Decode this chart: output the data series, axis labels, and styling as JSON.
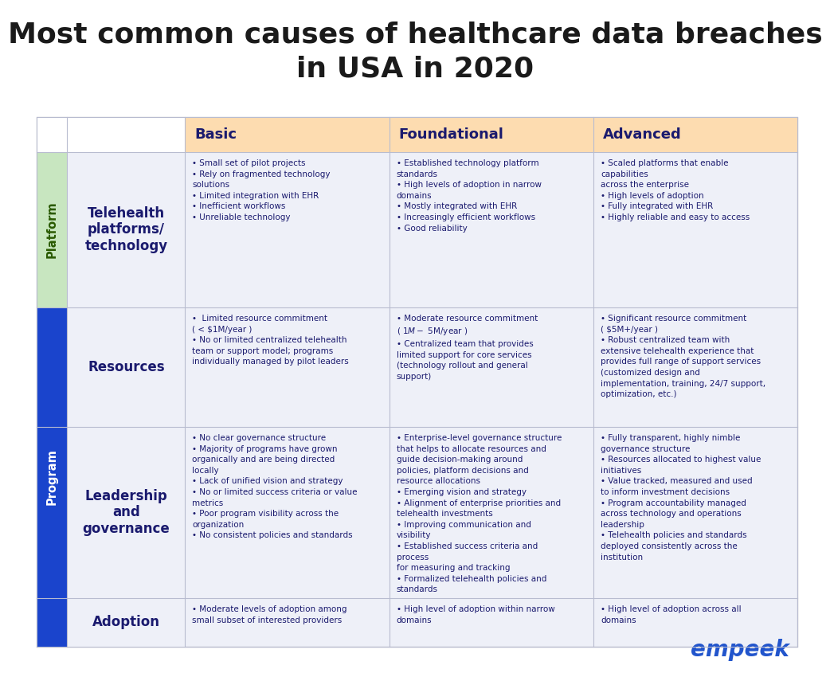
{
  "title": "Most common causes of healthcare data breaches\nin USA in 2020",
  "title_fontsize": 26,
  "bg_color": "#ffffff",
  "table_bg": "#eef0f8",
  "header_bg": "#fddcb0",
  "platform_sidebar_color": "#c8e6c0",
  "program_sidebar_color": "#1a44cc",
  "row_border_color": "#cccccc",
  "header_text_color": "#1a1a6e",
  "sidebar_text_color_platform": "#2a5a00",
  "sidebar_text_color_program": "#ffffff",
  "cell_text_color": "#1a1a6e",
  "row_label_color": "#1a1a6e",
  "brand_color": "#2255cc",
  "brand_text": "empeek",
  "columns": [
    "Basic",
    "Foundational",
    "Advanced"
  ],
  "rows": [
    {
      "label": "Telehealth\nplatforms/\ntechnology",
      "group": "Platform",
      "cells": [
        "• Small set of pilot projects\n• Rely on fragmented technology\nsolutions\n• Limited integration with EHR\n• Inefficient workflows\n• Unreliable technology",
        "• Established technology platform\nstandards\n• High levels of adoption in narrow\ndomains\n• Mostly integrated with EHR\n• Increasingly efficient workflows\n• Good reliability",
        "• Scaled platforms that enable\ncapabilities\nacross the enterprise\n• High levels of adoption\n• Fully integrated with EHR\n• Highly reliable and easy to access"
      ]
    },
    {
      "label": "Resources",
      "group": "Program",
      "cells": [
        "•  Limited resource commitment\n( < $1M/year )\n• No or limited centralized telehealth\nteam or support model; programs\nindividually managed by pilot leaders",
        "• Moderate resource commitment\n( $1M-$ 5M/year )\n• Centralized team that provides\nlimited support for core services\n(technology rollout and general\nsupport)",
        "• Significant resource commitment\n( $5M+/year )\n• Robust centralized team with\nextensive telehealth experience that\nprovides full range of support services\n(customized design and\nimplementation, training, 24/7 support,\noptimization, etc.)"
      ]
    },
    {
      "label": "Leadership\nand\ngovernance",
      "group": "Program",
      "cells": [
        "• No clear governance structure\n• Majority of programs have grown\norganically and are being directed\nlocally\n• Lack of unified vision and strategy\n• No or limited success criteria or value\nmetrics\n• Poor program visibility across the\norganization\n• No consistent policies and standards",
        "• Enterprise-level governance structure\nthat helps to allocate resources and\nguide decision-making around\npolicies, platform decisions and\nresource allocations\n• Emerging vision and strategy\n• Alignment of enterprise priorities and\ntelehealth investments\n• Improving communication and\nvisibility\n• Established success criteria and\nprocess\nfor measuring and tracking\n• Formalized telehealth policies and\nstandards",
        "• Fully transparent, highly nimble\ngovernance structure\n• Resources allocated to highest value\ninitiatives\n• Value tracked, measured and used\nto inform investment decisions\n• Program accountability managed\nacross technology and operations\nleadership\n• Telehealth policies and standards\ndeployed consistently across the\ninstitution"
      ]
    },
    {
      "label": "Adoption",
      "group": "Program",
      "cells": [
        "• Moderate levels of adoption among\nsmall subset of interested providers",
        "• High level of adoption within narrow\ndomains",
        "• High level of adoption across all\ndomains"
      ]
    }
  ]
}
